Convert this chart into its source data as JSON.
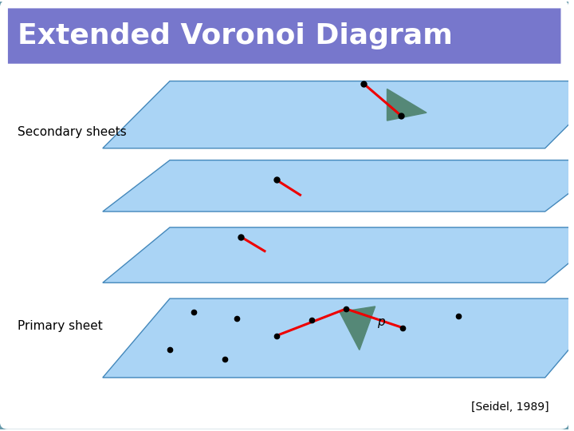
{
  "title": "Extended Voronoi Diagram",
  "title_bg": "#7777cc",
  "title_color": "white",
  "title_fontsize": 26,
  "outer_bg": "white",
  "border_color": "#6699aa",
  "label_secondary": "Secondary sheets",
  "label_primary": "Primary sheet",
  "label_seidel": "[Seidel, 1989]",
  "sheet_color": "#aad4f5",
  "sheet_edge_color": "#4488bb",
  "triangle_color": "#558877",
  "red_line_color": "#ee0000",
  "dot_color": "black",
  "p_label": "p",
  "white_line_color": "white"
}
